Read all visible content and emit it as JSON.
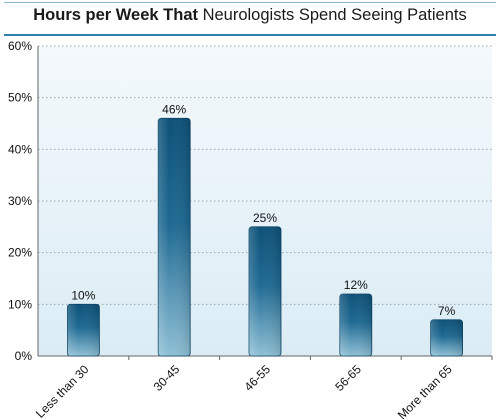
{
  "chart_data": {
    "type": "bar",
    "title_bold": "Hours per Week That",
    "title_rest": "Neurologists Spend Seeing Patients",
    "categories": [
      "Less than 30",
      "30-45",
      "46-55",
      "56-65",
      "More than 65"
    ],
    "values": [
      10,
      46,
      25,
      12,
      7
    ],
    "data_labels": [
      "10%",
      "46%",
      "25%",
      "12%",
      "7%"
    ],
    "y_ticks": [
      "0%",
      "10%",
      "20%",
      "30%",
      "40%",
      "50%",
      "60%"
    ],
    "ylim": [
      0,
      60
    ],
    "grid": true,
    "colors": {
      "bar_dark": "#0d5178",
      "bar_mid": "#1f6a93",
      "bar_light": "#8fc0d6",
      "plot_bg_top": "#f4f9fc",
      "plot_bg_bottom": "#dbecf5",
      "title_rule": "#2f7fb0"
    }
  }
}
